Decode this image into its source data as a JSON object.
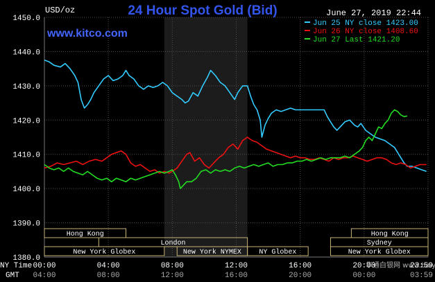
{
  "chart_data": {
    "type": "line",
    "title": "24 Hour Spot Gold (Bid)",
    "date_label": "June 27, 2019 22:44",
    "watermark": "www.kitco.com",
    "ylabel": "USD/oz",
    "ylim": [
      1380,
      1450
    ],
    "yticks": [
      1380,
      1390,
      1400,
      1410,
      1420,
      1430,
      1440,
      1450
    ],
    "ytick_labels": [
      "1380.0",
      "1390.0",
      "1400.0",
      "1410.0",
      "1420.0",
      "1430.0",
      "1440.0",
      "1450.0"
    ],
    "xlim": [
      0,
      24
    ],
    "xticks": [
      0,
      4,
      8,
      12,
      16,
      20,
      24
    ],
    "xtick_labels_ny": [
      "00:00",
      "04:00",
      "08:00",
      "12:00",
      "16:00",
      "20:00",
      "23:59"
    ],
    "xtick_labels_gmt": [
      "04:00",
      "08:00",
      "12:00",
      "16:00",
      "20:00",
      "00:00",
      "03:59"
    ],
    "axis_row_labels": [
      "NY Time",
      "GMT"
    ],
    "shaded_interval": [
      7.5,
      12.7
    ],
    "legend": [
      {
        "label": "Jun 25 NY close 1423.00",
        "color": "#33ccff"
      },
      {
        "label": "Jun 26 NY close 1408.60",
        "color": "#ee1111"
      },
      {
        "label": "Jun 27 Last 1421.20",
        "color": "#22dd22"
      }
    ],
    "sessions": [
      {
        "label": "Hong Kong",
        "row": 0,
        "start": 0,
        "end": 5.1
      },
      {
        "label": "Hong Kong",
        "row": 0,
        "start": 19.2,
        "end": 24
      },
      {
        "label": "London",
        "row": 1,
        "start": 3.4,
        "end": 12.7
      },
      {
        "label": "Sydney",
        "row": 1,
        "start": 17.9,
        "end": 24
      },
      {
        "label": "New York Globex",
        "row": 2,
        "start": 0,
        "end": 7.5
      },
      {
        "label": "New York NYMEX",
        "row": 2,
        "start": 8.3,
        "end": 12.7
      },
      {
        "label": "NY Globex",
        "row": 2,
        "start": 12.7,
        "end": 16.5
      },
      {
        "label": "New York Globex",
        "row": 2,
        "start": 17.9,
        "end": 24
      }
    ],
    "series": [
      {
        "name": "Jun 25",
        "color": "#33ccff",
        "points": [
          [
            0,
            1437.5
          ],
          [
            0.3,
            1437
          ],
          [
            0.6,
            1436
          ],
          [
            1,
            1435.5
          ],
          [
            1.3,
            1436.5
          ],
          [
            1.6,
            1435
          ],
          [
            1.9,
            1433
          ],
          [
            2.1,
            1431
          ],
          [
            2.3,
            1426
          ],
          [
            2.5,
            1423.5
          ],
          [
            2.7,
            1424.5
          ],
          [
            2.9,
            1426
          ],
          [
            3.1,
            1428
          ],
          [
            3.4,
            1430
          ],
          [
            3.7,
            1432
          ],
          [
            4,
            1433
          ],
          [
            4.3,
            1431.5
          ],
          [
            4.6,
            1432
          ],
          [
            4.9,
            1433
          ],
          [
            5.1,
            1434.5
          ],
          [
            5.3,
            1433
          ],
          [
            5.6,
            1432
          ],
          [
            5.9,
            1430
          ],
          [
            6.2,
            1429
          ],
          [
            6.5,
            1430
          ],
          [
            6.8,
            1429.5
          ],
          [
            7.1,
            1430
          ],
          [
            7.4,
            1431
          ],
          [
            7.7,
            1430
          ],
          [
            8,
            1428
          ],
          [
            8.3,
            1427
          ],
          [
            8.6,
            1426
          ],
          [
            8.8,
            1425
          ],
          [
            9,
            1425.5
          ],
          [
            9.3,
            1428
          ],
          [
            9.6,
            1427
          ],
          [
            9.9,
            1430
          ],
          [
            10.2,
            1432.5
          ],
          [
            10.4,
            1434.5
          ],
          [
            10.7,
            1433
          ],
          [
            11,
            1431
          ],
          [
            11.3,
            1430
          ],
          [
            11.6,
            1428
          ],
          [
            11.9,
            1426
          ],
          [
            12.1,
            1428
          ],
          [
            12.4,
            1430
          ],
          [
            12.7,
            1430
          ],
          [
            12.9,
            1427
          ],
          [
            13.1,
            1424.5
          ],
          [
            13.3,
            1423
          ],
          [
            13.5,
            1420
          ],
          [
            13.6,
            1415
          ],
          [
            13.8,
            1418.5
          ],
          [
            14,
            1420.5
          ],
          [
            14.2,
            1422
          ],
          [
            14.5,
            1423
          ],
          [
            14.8,
            1422.5
          ],
          [
            15.1,
            1423
          ],
          [
            15.4,
            1423.5
          ],
          [
            15.7,
            1423
          ],
          [
            16,
            1423
          ],
          [
            16.5,
            1423
          ],
          [
            17,
            1423
          ],
          [
            17.5,
            1423
          ],
          [
            17.7,
            1421
          ],
          [
            17.9,
            1419.5
          ],
          [
            18.1,
            1418
          ],
          [
            18.3,
            1417
          ],
          [
            18.5,
            1418
          ],
          [
            18.8,
            1419.5
          ],
          [
            19.1,
            1420
          ],
          [
            19.4,
            1418.5
          ],
          [
            19.6,
            1418
          ],
          [
            19.8,
            1419
          ],
          [
            20.1,
            1417
          ],
          [
            20.4,
            1416
          ],
          [
            20.7,
            1415
          ],
          [
            21,
            1414.5
          ],
          [
            21.3,
            1414
          ],
          [
            21.6,
            1413
          ],
          [
            21.9,
            1412
          ],
          [
            22.1,
            1410.5
          ],
          [
            22.3,
            1409
          ],
          [
            22.5,
            1407.5
          ],
          [
            22.7,
            1406.5
          ],
          [
            23,
            1406.5
          ],
          [
            23.3,
            1406
          ],
          [
            23.6,
            1405.5
          ],
          [
            23.9,
            1405
          ]
        ]
      },
      {
        "name": "Jun 26",
        "color": "#ee1111",
        "points": [
          [
            0,
            1406
          ],
          [
            0.4,
            1406.5
          ],
          [
            0.8,
            1407.5
          ],
          [
            1.2,
            1407
          ],
          [
            1.6,
            1407.5
          ],
          [
            2,
            1408
          ],
          [
            2.4,
            1407
          ],
          [
            2.8,
            1408
          ],
          [
            3.2,
            1408.5
          ],
          [
            3.6,
            1408
          ],
          [
            3.9,
            1409
          ],
          [
            4.2,
            1410
          ],
          [
            4.5,
            1410.5
          ],
          [
            4.8,
            1411
          ],
          [
            5.1,
            1410
          ],
          [
            5.4,
            1407.5
          ],
          [
            5.7,
            1406.5
          ],
          [
            6,
            1407
          ],
          [
            6.3,
            1406
          ],
          [
            6.6,
            1405
          ],
          [
            6.9,
            1405.5
          ],
          [
            7.2,
            1404.5
          ],
          [
            7.5,
            1405
          ],
          [
            7.8,
            1404.5
          ],
          [
            8,
            1405
          ],
          [
            8.3,
            1406
          ],
          [
            8.6,
            1408
          ],
          [
            8.9,
            1410
          ],
          [
            9.1,
            1410.5
          ],
          [
            9.4,
            1408
          ],
          [
            9.7,
            1409
          ],
          [
            10,
            1407
          ],
          [
            10.3,
            1406
          ],
          [
            10.6,
            1407.5
          ],
          [
            10.9,
            1409
          ],
          [
            11.2,
            1410
          ],
          [
            11.5,
            1412
          ],
          [
            11.8,
            1413
          ],
          [
            12.1,
            1411.5
          ],
          [
            12.4,
            1414
          ],
          [
            12.7,
            1415
          ],
          [
            13,
            1414
          ],
          [
            13.3,
            1413.5
          ],
          [
            13.6,
            1412.5
          ],
          [
            13.9,
            1411.5
          ],
          [
            14.2,
            1411
          ],
          [
            14.5,
            1410.5
          ],
          [
            14.8,
            1410
          ],
          [
            15.1,
            1409.5
          ],
          [
            15.4,
            1409
          ],
          [
            15.7,
            1409.5
          ],
          [
            16,
            1409
          ],
          [
            16.3,
            1409
          ],
          [
            16.6,
            1408.5
          ],
          [
            16.9,
            1408.5
          ],
          [
            17.2,
            1409
          ],
          [
            17.5,
            1408.5
          ],
          [
            17.8,
            1408
          ],
          [
            18.1,
            1409
          ],
          [
            18.4,
            1408.5
          ],
          [
            18.7,
            1409
          ],
          [
            19,
            1409
          ],
          [
            19.3,
            1409.5
          ],
          [
            19.6,
            1409
          ],
          [
            19.9,
            1408.5
          ],
          [
            20.2,
            1408
          ],
          [
            20.5,
            1408.5
          ],
          [
            20.8,
            1409
          ],
          [
            21.1,
            1409
          ],
          [
            21.4,
            1408.5
          ],
          [
            21.7,
            1407.5
          ],
          [
            22,
            1407
          ],
          [
            22.3,
            1407.5
          ],
          [
            22.6,
            1407
          ],
          [
            22.9,
            1406
          ],
          [
            23.2,
            1406.5
          ],
          [
            23.5,
            1407
          ],
          [
            23.9,
            1407
          ]
        ]
      },
      {
        "name": "Jun 27",
        "color": "#22dd22",
        "points": [
          [
            0,
            1407
          ],
          [
            0.3,
            1406
          ],
          [
            0.6,
            1405.5
          ],
          [
            0.9,
            1406
          ],
          [
            1.2,
            1405
          ],
          [
            1.5,
            1406
          ],
          [
            1.8,
            1405
          ],
          [
            2.1,
            1404.5
          ],
          [
            2.4,
            1404
          ],
          [
            2.7,
            1405
          ],
          [
            3,
            1404
          ],
          [
            3.3,
            1403
          ],
          [
            3.6,
            1402.5
          ],
          [
            3.9,
            1403
          ],
          [
            4.2,
            1402
          ],
          [
            4.5,
            1403
          ],
          [
            4.8,
            1402.5
          ],
          [
            5.1,
            1402
          ],
          [
            5.4,
            1403
          ],
          [
            5.7,
            1402.5
          ],
          [
            6,
            1403
          ],
          [
            6.3,
            1403.5
          ],
          [
            6.6,
            1404
          ],
          [
            6.9,
            1404.5
          ],
          [
            7.2,
            1405
          ],
          [
            7.5,
            1404.5
          ],
          [
            7.8,
            1405
          ],
          [
            8,
            1405.5
          ],
          [
            8.2,
            1404
          ],
          [
            8.4,
            1402
          ],
          [
            8.5,
            1400
          ],
          [
            8.7,
            1401
          ],
          [
            8.9,
            1402
          ],
          [
            9.2,
            1402
          ],
          [
            9.5,
            1403
          ],
          [
            9.8,
            1405
          ],
          [
            10.1,
            1405.5
          ],
          [
            10.4,
            1404.5
          ],
          [
            10.7,
            1405.5
          ],
          [
            11,
            1405
          ],
          [
            11.3,
            1405.5
          ],
          [
            11.6,
            1405
          ],
          [
            11.9,
            1406
          ],
          [
            12.2,
            1406.5
          ],
          [
            12.5,
            1406
          ],
          [
            12.8,
            1406.5
          ],
          [
            13.1,
            1407
          ],
          [
            13.4,
            1406.5
          ],
          [
            13.7,
            1407
          ],
          [
            14,
            1407.5
          ],
          [
            14.3,
            1406.5
          ],
          [
            14.6,
            1407
          ],
          [
            14.9,
            1407
          ],
          [
            15.2,
            1407.5
          ],
          [
            15.5,
            1407.5
          ],
          [
            15.8,
            1408
          ],
          [
            16.1,
            1408
          ],
          [
            16.4,
            1408.5
          ],
          [
            16.7,
            1408
          ],
          [
            17,
            1408.5
          ],
          [
            17.3,
            1409
          ],
          [
            17.6,
            1408.5
          ],
          [
            17.9,
            1409
          ],
          [
            18.2,
            1409
          ],
          [
            18.5,
            1409
          ],
          [
            18.8,
            1409.5
          ],
          [
            19.1,
            1409
          ],
          [
            19.4,
            1410
          ],
          [
            19.7,
            1411
          ],
          [
            19.9,
            1412
          ],
          [
            20.1,
            1414
          ],
          [
            20.3,
            1415
          ],
          [
            20.5,
            1414
          ],
          [
            20.7,
            1416
          ],
          [
            20.9,
            1418
          ],
          [
            21.1,
            1417.5
          ],
          [
            21.3,
            1419
          ],
          [
            21.5,
            1420
          ],
          [
            21.7,
            1422
          ],
          [
            21.9,
            1423
          ],
          [
            22.1,
            1422.5
          ],
          [
            22.3,
            1421.5
          ],
          [
            22.5,
            1421
          ],
          [
            22.7,
            1421.2
          ]
        ]
      }
    ]
  },
  "footer_watermark": "华通白银网 www.baiyinjie.com",
  "colors": {
    "background": "#000000",
    "grid": "#505050",
    "session_border": "#c8b478",
    "text": "#ffffff",
    "title": "#3355ee",
    "watermark": "#4466ff"
  }
}
